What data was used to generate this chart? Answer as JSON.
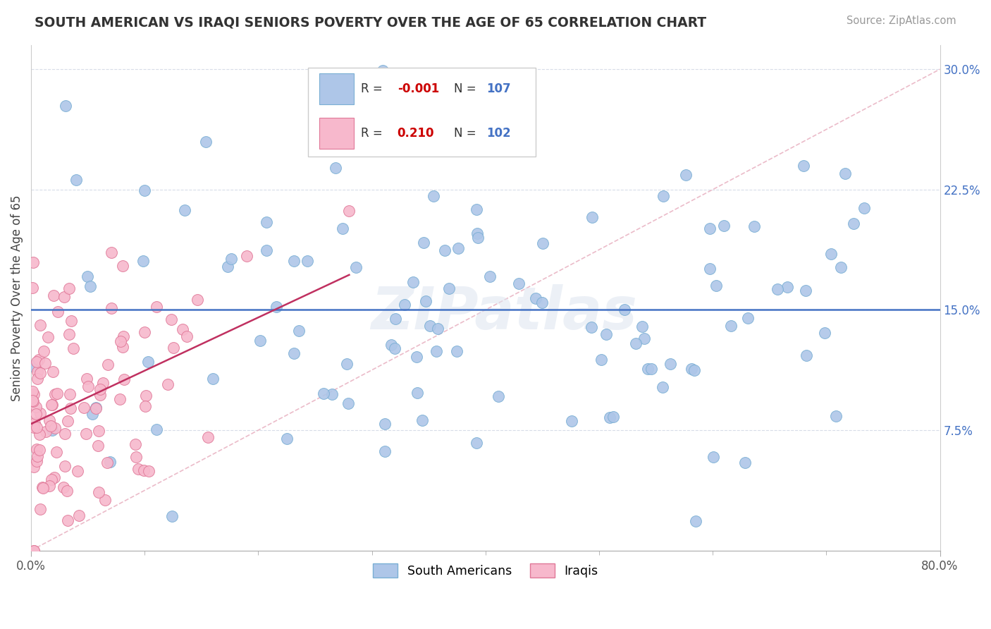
{
  "title": "SOUTH AMERICAN VS IRAQI SENIORS POVERTY OVER THE AGE OF 65 CORRELATION CHART",
  "source": "Source: ZipAtlas.com",
  "ylabel": "Seniors Poverty Over the Age of 65",
  "xlim": [
    0.0,
    0.8
  ],
  "ylim": [
    0.0,
    0.315
  ],
  "ytick_vals": [
    0.075,
    0.15,
    0.225,
    0.3
  ],
  "ytick_labels": [
    "7.5%",
    "15.0%",
    "22.5%",
    "30.0%"
  ],
  "xtick_vals": [
    0.0,
    0.8
  ],
  "xtick_labels": [
    "0.0%",
    "80.0%"
  ],
  "south_american_color": "#aec6e8",
  "iraqi_color": "#f7b8cc",
  "south_american_edge": "#7aafd4",
  "iraqi_edge": "#e07898",
  "r_sa": "-0.001",
  "n_sa": "107",
  "r_iq": "0.210",
  "n_iq": "102",
  "hline_y": 0.15,
  "hline_color": "#4472c4",
  "diag_color": "#e8b0c0",
  "reg_line_color": "#c03060",
  "watermark": "ZIPatlas",
  "tick_label_color": "#4472c4",
  "grid_color": "#d8dce8",
  "title_color": "#333333",
  "source_color": "#999999"
}
